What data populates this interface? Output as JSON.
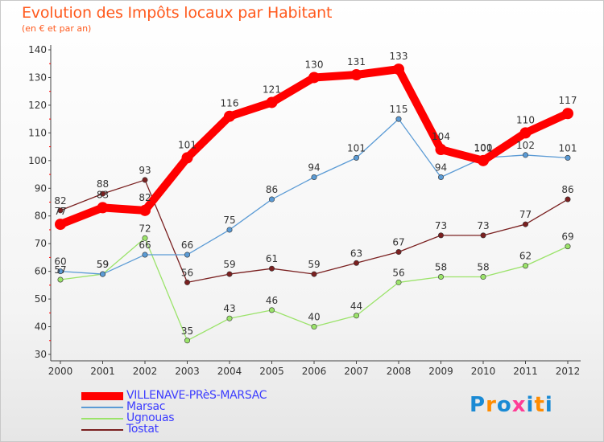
{
  "chart_data": {
    "type": "line",
    "title": "Evolution des Impôts locaux par Habitant",
    "subtitle": "(en € et par an)",
    "categories": [
      "2000",
      "2001",
      "2002",
      "2003",
      "2004",
      "2005",
      "2006",
      "2007",
      "2008",
      "2009",
      "2010",
      "2011",
      "2012"
    ],
    "ylim": [
      30,
      140
    ],
    "yticks": [
      30,
      40,
      50,
      60,
      70,
      80,
      90,
      100,
      110,
      120,
      130,
      140
    ],
    "grid": false,
    "series": [
      {
        "name": "VILLENAVE-PRèS-MARSAC",
        "color": "#ff0000",
        "values": [
          77,
          83,
          82,
          101,
          116,
          121,
          130,
          131,
          133,
          104,
          100,
          110,
          117
        ]
      },
      {
        "name": "Marsac",
        "color": "#5b9bd5",
        "values": [
          60,
          59,
          66,
          66,
          75,
          86,
          94,
          101,
          115,
          94,
          101,
          102,
          101
        ]
      },
      {
        "name": "Ugnouas",
        "color": "#9be36a",
        "values": [
          57,
          59,
          72,
          35,
          43,
          46,
          40,
          44,
          56,
          58,
          58,
          62,
          69
        ]
      },
      {
        "name": "Tostat",
        "color": "#7a2020",
        "values": [
          82,
          88,
          93,
          56,
          59,
          61,
          59,
          63,
          67,
          73,
          73,
          77,
          86
        ]
      }
    ]
  },
  "logo": {
    "letters": [
      "P",
      "r",
      "o",
      "x",
      "i",
      "t",
      "i"
    ],
    "colors": [
      "#1a8ad4",
      "#ff8c00",
      "#1a8ad4",
      "#ff3c96",
      "#1a8ad4",
      "#ff8c00",
      "#1a8ad4"
    ]
  }
}
